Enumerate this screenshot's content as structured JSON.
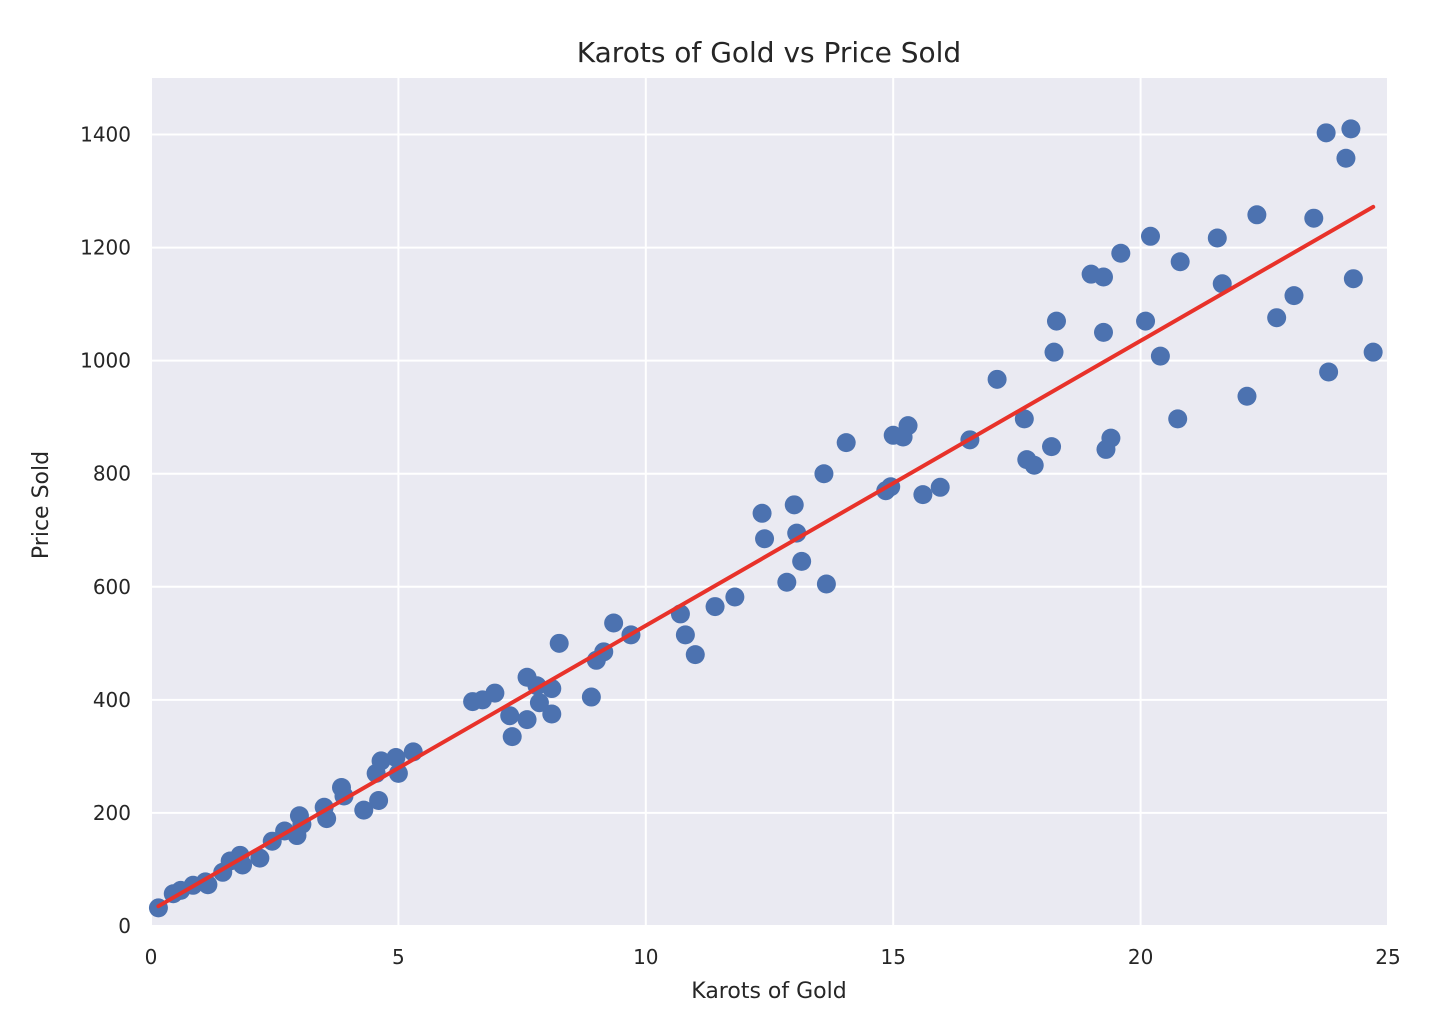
{
  "chart_data": {
    "type": "scatter",
    "title": "Karots of Gold vs Price Sold",
    "xlabel": "Karots of Gold",
    "ylabel": "Price Sold",
    "xlim": [
      0,
      25
    ],
    "ylim": [
      0,
      1500
    ],
    "xticks": [
      0,
      5,
      10,
      15,
      20,
      25
    ],
    "yticks": [
      0,
      200,
      400,
      600,
      800,
      1000,
      1200,
      1400
    ],
    "grid": true,
    "colors": {
      "background": "#eaeaf2",
      "grid": "#ffffff",
      "points": "#4c72b0",
      "fit_line": "#e8322a"
    },
    "series": [
      {
        "kind": "points",
        "points": [
          [
            0.15,
            32
          ],
          [
            0.45,
            57
          ],
          [
            0.6,
            63
          ],
          [
            0.85,
            72
          ],
          [
            1.1,
            78
          ],
          [
            1.15,
            73
          ],
          [
            1.45,
            95
          ],
          [
            1.6,
            115
          ],
          [
            1.8,
            125
          ],
          [
            1.85,
            108
          ],
          [
            2.2,
            120
          ],
          [
            2.45,
            150
          ],
          [
            2.7,
            168
          ],
          [
            2.95,
            160
          ],
          [
            3.0,
            195
          ],
          [
            3.05,
            180
          ],
          [
            3.5,
            210
          ],
          [
            3.55,
            190
          ],
          [
            3.85,
            245
          ],
          [
            3.9,
            230
          ],
          [
            4.3,
            205
          ],
          [
            4.55,
            270
          ],
          [
            4.6,
            222
          ],
          [
            4.65,
            292
          ],
          [
            4.95,
            298
          ],
          [
            5.0,
            270
          ],
          [
            5.3,
            308
          ],
          [
            6.5,
            397
          ],
          [
            6.7,
            400
          ],
          [
            6.95,
            412
          ],
          [
            7.25,
            372
          ],
          [
            7.3,
            335
          ],
          [
            7.6,
            365
          ],
          [
            7.6,
            440
          ],
          [
            7.8,
            425
          ],
          [
            7.85,
            395
          ],
          [
            8.1,
            375
          ],
          [
            8.1,
            420
          ],
          [
            8.25,
            500
          ],
          [
            8.9,
            405
          ],
          [
            9.0,
            470
          ],
          [
            9.15,
            485
          ],
          [
            9.35,
            536
          ],
          [
            9.7,
            515
          ],
          [
            10.7,
            552
          ],
          [
            10.8,
            515
          ],
          [
            11.0,
            480
          ],
          [
            11.4,
            565
          ],
          [
            11.8,
            582
          ],
          [
            12.35,
            730
          ],
          [
            12.4,
            685
          ],
          [
            12.85,
            608
          ],
          [
            13.0,
            745
          ],
          [
            13.05,
            695
          ],
          [
            13.15,
            645
          ],
          [
            13.6,
            800
          ],
          [
            13.65,
            605
          ],
          [
            14.05,
            855
          ],
          [
            14.85,
            770
          ],
          [
            14.95,
            777
          ],
          [
            15.0,
            868
          ],
          [
            15.2,
            865
          ],
          [
            15.3,
            885
          ],
          [
            15.6,
            763
          ],
          [
            15.95,
            776
          ],
          [
            16.55,
            860
          ],
          [
            17.1,
            967
          ],
          [
            17.65,
            897
          ],
          [
            17.7,
            825
          ],
          [
            17.85,
            815
          ],
          [
            18.2,
            848
          ],
          [
            18.25,
            1015
          ],
          [
            18.3,
            1070
          ],
          [
            19.0,
            1153
          ],
          [
            19.25,
            1148
          ],
          [
            19.25,
            1050
          ],
          [
            19.3,
            843
          ],
          [
            19.4,
            863
          ],
          [
            19.6,
            1190
          ],
          [
            20.1,
            1070
          ],
          [
            20.2,
            1220
          ],
          [
            20.4,
            1008
          ],
          [
            20.75,
            897
          ],
          [
            20.8,
            1175
          ],
          [
            21.55,
            1217
          ],
          [
            21.65,
            1136
          ],
          [
            22.15,
            937
          ],
          [
            22.35,
            1258
          ],
          [
            22.75,
            1076
          ],
          [
            23.1,
            1115
          ],
          [
            23.5,
            1252
          ],
          [
            23.8,
            980
          ],
          [
            23.75,
            1403
          ],
          [
            24.15,
            1358
          ],
          [
            24.25,
            1410
          ],
          [
            24.3,
            1145
          ],
          [
            24.7,
            1015
          ]
        ]
      },
      {
        "kind": "line",
        "points": [
          [
            0.15,
            35
          ],
          [
            24.7,
            1272
          ]
        ]
      }
    ]
  }
}
